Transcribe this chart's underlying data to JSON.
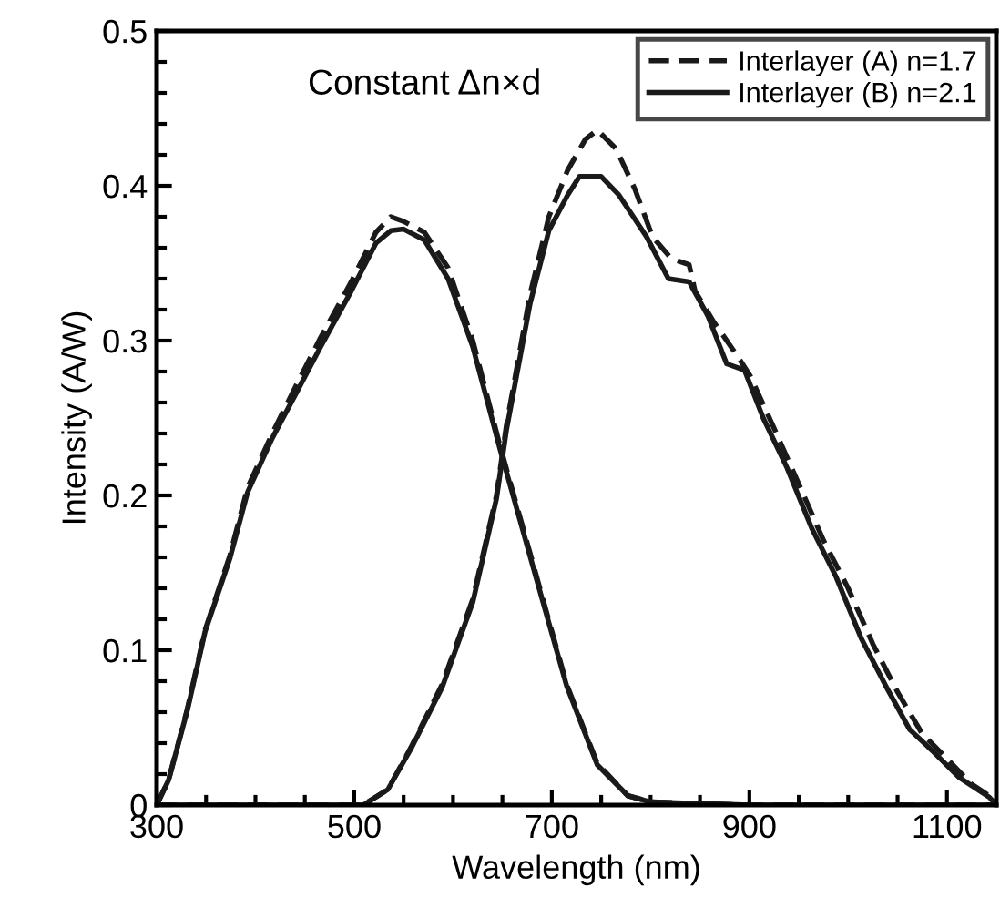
{
  "chart_data": {
    "type": "line",
    "xlabel": "Wavelength (nm)",
    "ylabel": "Intensity (A/W)",
    "annotations": [
      "Constant Δn×d"
    ],
    "xlim": [
      300,
      1150
    ],
    "ylim": [
      0,
      0.5
    ],
    "xticks": [
      300,
      {
        "value": 350,
        "label": null
      },
      {
        "value": 400,
        "label": null
      },
      {
        "value": 450,
        "label": null
      },
      500,
      {
        "value": 550,
        "label": null
      },
      {
        "value": 600,
        "label": null
      },
      {
        "value": 650,
        "label": null
      },
      700,
      {
        "value": 750,
        "label": null
      },
      {
        "value": 800,
        "label": null
      },
      {
        "value": 850,
        "label": null
      },
      900,
      {
        "value": 950,
        "label": null
      },
      {
        "value": 1000,
        "label": null
      },
      {
        "value": 1050,
        "label": null
      },
      1100
    ],
    "yticks": [
      0,
      {
        "value": 0.02,
        "label": null
      },
      {
        "value": 0.04,
        "label": null
      },
      {
        "value": 0.06,
        "label": null
      },
      {
        "value": 0.08,
        "label": null
      },
      0.1,
      {
        "value": 0.12,
        "label": null
      },
      {
        "value": 0.14,
        "label": null
      },
      {
        "value": 0.16,
        "label": null
      },
      {
        "value": 0.18,
        "label": null
      },
      0.2,
      {
        "value": 0.22,
        "label": null
      },
      {
        "value": 0.24,
        "label": null
      },
      {
        "value": 0.26,
        "label": null
      },
      {
        "value": 0.28,
        "label": null
      },
      0.3,
      {
        "value": 0.32,
        "label": null
      },
      {
        "value": 0.34,
        "label": null
      },
      {
        "value": 0.36,
        "label": null
      },
      {
        "value": 0.38,
        "label": null
      },
      0.4,
      {
        "value": 0.42,
        "label": null
      },
      {
        "value": 0.44,
        "label": null
      },
      {
        "value": 0.46,
        "label": null
      },
      {
        "value": 0.48,
        "label": null
      },
      0.5
    ],
    "grid": false,
    "legend": "top right",
    "marker": "none",
    "series": [
      {
        "name": "Interlayer (A) n=1.7",
        "color": "#1a1a1a",
        "line_style": "dashed",
        "x": [
          300,
          312,
          331,
          349,
          374,
          392,
          417,
          442,
          466,
          497,
          522,
          537,
          550,
          571,
          595,
          620,
          648,
          684,
          715,
          746,
          777,
          800,
          900,
          1000,
          1150
        ],
        "values": [
          0,
          0.016,
          0.062,
          0.113,
          0.161,
          0.205,
          0.24,
          0.272,
          0.302,
          0.338,
          0.37,
          0.38,
          0.377,
          0.37,
          0.347,
          0.3,
          0.231,
          0.149,
          0.078,
          0.027,
          0.006,
          0.002,
          0,
          0,
          0
        ]
      },
      {
        "name": "Interlayer (B) n=2.1",
        "color": "#1a1a1a",
        "line_style": "solid",
        "x": [
          300,
          312,
          331,
          349,
          374,
          392,
          417,
          442,
          466,
          497,
          522,
          537,
          550,
          571,
          595,
          620,
          648,
          684,
          715,
          746,
          777,
          800,
          900,
          1000,
          1150
        ],
        "values": [
          0,
          0.016,
          0.061,
          0.112,
          0.159,
          0.202,
          0.237,
          0.267,
          0.296,
          0.332,
          0.363,
          0.371,
          0.372,
          0.365,
          0.34,
          0.296,
          0.229,
          0.147,
          0.077,
          0.026,
          0.006,
          0.002,
          0,
          0,
          0
        ]
      },
      {
        "color": "#1a1a1a",
        "line_style": "dashed",
        "x": [
          300,
          400,
          500,
          509,
          534,
          558,
          589,
          620,
          644,
          654,
          678,
          697,
          716,
          734,
          746,
          765,
          784,
          802,
          821,
          839,
          845,
          864,
          889,
          901,
          926,
          951,
          975,
          1000,
          1025,
          1050,
          1075,
          1100,
          1124,
          1150
        ],
        "values": [
          0,
          0,
          0,
          0,
          0.01,
          0.038,
          0.078,
          0.133,
          0.2,
          0.245,
          0.33,
          0.38,
          0.41,
          0.43,
          0.436,
          0.424,
          0.398,
          0.367,
          0.353,
          0.349,
          0.332,
          0.312,
          0.289,
          0.277,
          0.242,
          0.206,
          0.171,
          0.14,
          0.104,
          0.073,
          0.046,
          0.03,
          0.014,
          0.003
        ]
      },
      {
        "color": "#1a1a1a",
        "line_style": "solid",
        "x": [
          300,
          400,
          500,
          509,
          534,
          558,
          589,
          620,
          644,
          654,
          678,
          697,
          716,
          728,
          750,
          768,
          796,
          818,
          839,
          858,
          877,
          895,
          914,
          938,
          963,
          988,
          1013,
          1038,
          1062,
          1087,
          1112,
          1143,
          1150
        ],
        "values": [
          0,
          0,
          0,
          0,
          0.01,
          0.037,
          0.076,
          0.131,
          0.198,
          0.242,
          0.324,
          0.371,
          0.394,
          0.406,
          0.406,
          0.394,
          0.367,
          0.34,
          0.338,
          0.316,
          0.285,
          0.281,
          0.25,
          0.218,
          0.179,
          0.147,
          0.108,
          0.077,
          0.049,
          0.034,
          0.018,
          0.005,
          0
        ]
      }
    ]
  }
}
